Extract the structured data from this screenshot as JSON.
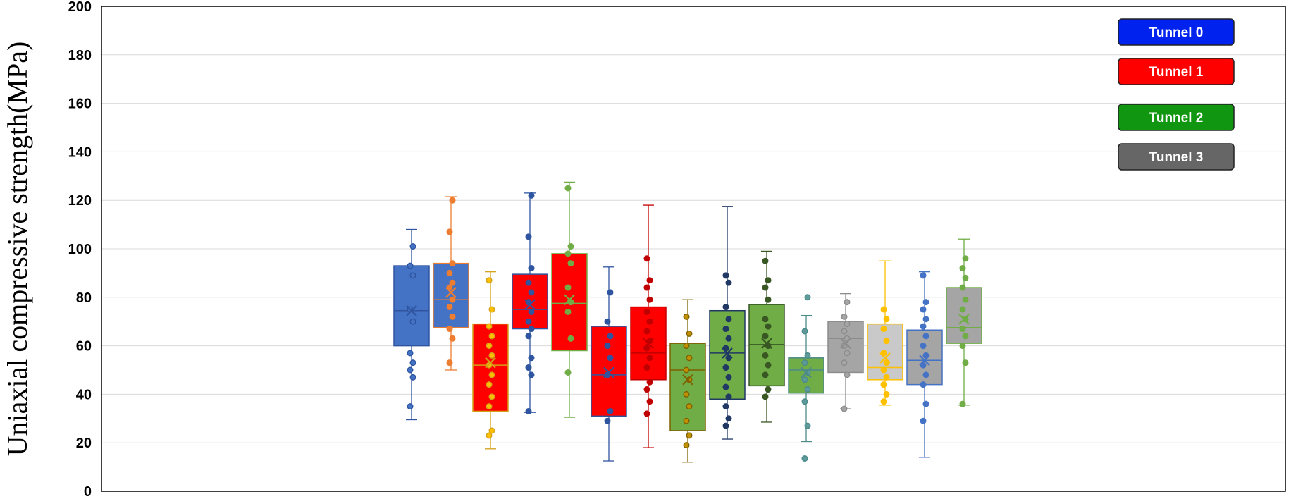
{
  "chart_data": {
    "type": "box",
    "title": "",
    "xlabel": "",
    "ylabel": "Uniaxial compressive strength(MPa)",
    "ylim": [
      0,
      200
    ],
    "yticks": [
      0,
      20,
      40,
      60,
      80,
      100,
      120,
      140,
      160,
      180,
      200
    ],
    "grid": "horizontal",
    "legend": {
      "position": "top-right",
      "entries": [
        {
          "label": "Tunnel 0",
          "color": "#0022ee"
        },
        {
          "label": "Tunnel 1",
          "color": "#ff0000"
        },
        {
          "label": "Tunnel 2",
          "color": "#109610"
        },
        {
          "label": "Tunnel 3",
          "color": "#666666"
        }
      ]
    },
    "boxes": [
      {
        "tunnel": 0,
        "fill": "#4472c4",
        "edge": "#2f55a0",
        "point": "#4472c4",
        "whisker": [
          29.5,
          108
        ],
        "q1": 60,
        "median": 74.5,
        "q3": 93,
        "mean": 74.5,
        "points": [
          35,
          47,
          50,
          53,
          57,
          70,
          75,
          89,
          93,
          101
        ]
      },
      {
        "tunnel": 0,
        "fill": "#4472c4",
        "edge": "#ed7d31",
        "point": "#ed7d31",
        "whisker": [
          50,
          121.5
        ],
        "q1": 67.5,
        "median": 79,
        "q3": 94,
        "mean": 82,
        "points": [
          53,
          63,
          67,
          72,
          76,
          79,
          84,
          86,
          90,
          94,
          107,
          120
        ]
      },
      {
        "tunnel": 1,
        "fill": "#ff0000",
        "edge": "#d4a017",
        "point": "#ffc000",
        "whisker": [
          17.5,
          90.5
        ],
        "q1": 33,
        "median": 52,
        "q3": 69,
        "mean": 53,
        "points": [
          23,
          25,
          35,
          39,
          44,
          48,
          52,
          56,
          60,
          64,
          68,
          75,
          87
        ]
      },
      {
        "tunnel": 1,
        "fill": "#ff0000",
        "edge": "#2f55a0",
        "point": "#2f55a0",
        "whisker": [
          32.5,
          123
        ],
        "q1": 67,
        "median": 75,
        "q3": 89.5,
        "mean": 77,
        "points": [
          33,
          48,
          51,
          55,
          64,
          67,
          70,
          74,
          78,
          82,
          86,
          92,
          105,
          122
        ]
      },
      {
        "tunnel": 1,
        "fill": "#ff0000",
        "edge": "#70ad47",
        "point": "#70ad47",
        "whisker": [
          30.5,
          127.5
        ],
        "q1": 58,
        "median": 77.5,
        "q3": 98,
        "mean": 79,
        "points": [
          49,
          63,
          74,
          78,
          84,
          94,
          98,
          101,
          125
        ]
      },
      {
        "tunnel": 1,
        "fill": "#ff0000",
        "edge": "#2f55a0",
        "point": "#2f55a0",
        "whisker": [
          12.5,
          92.5
        ],
        "q1": 31,
        "median": 48,
        "q3": 68,
        "mean": 49,
        "points": [
          29,
          33,
          48,
          55,
          60,
          64,
          70,
          82
        ]
      },
      {
        "tunnel": 1,
        "fill": "#ff0000",
        "edge": "#c00000",
        "point": "#c00000",
        "whisker": [
          18,
          118
        ],
        "q1": 46,
        "median": 57,
        "q3": 76,
        "mean": 61,
        "points": [
          32,
          37,
          42,
          45,
          51,
          55,
          59,
          62,
          66,
          70,
          74,
          79,
          84,
          87,
          96
        ]
      },
      {
        "tunnel": 2,
        "fill": "#70ad47",
        "edge": "#7f6000",
        "point": "#bf9000",
        "whisker": [
          12,
          79
        ],
        "q1": 25,
        "median": 50,
        "q3": 61,
        "mean": 46,
        "points": [
          19,
          23,
          29,
          35,
          40,
          46,
          50,
          55,
          60,
          65,
          72
        ]
      },
      {
        "tunnel": 2,
        "fill": "#70ad47",
        "edge": "#203864",
        "point": "#203864",
        "whisker": [
          21.5,
          117.5
        ],
        "q1": 38,
        "median": 57,
        "q3": 74.5,
        "mean": 57,
        "points": [
          27,
          30,
          35,
          39,
          43,
          47,
          51,
          55,
          59,
          63,
          67,
          71,
          76,
          86,
          89
        ]
      },
      {
        "tunnel": 2,
        "fill": "#70ad47",
        "edge": "#385723",
        "point": "#385723",
        "whisker": [
          28.5,
          99
        ],
        "q1": 43.5,
        "median": 60.5,
        "q3": 77,
        "mean": 61,
        "points": [
          39,
          42,
          48,
          52,
          56,
          60,
          64,
          68,
          71,
          79,
          84,
          87,
          95
        ]
      },
      {
        "tunnel": 2,
        "fill": "#70ad47",
        "edge": "#4d8a8a",
        "point": "#5e9a9a",
        "whisker": [
          20.5,
          72.5
        ],
        "q1": 40.5,
        "median": 50,
        "q3": 55,
        "mean": 49,
        "points": [
          13.5,
          27,
          37,
          42,
          46,
          49,
          53,
          56,
          66,
          80
        ]
      },
      {
        "tunnel": 3,
        "fill": "#a5a5a5",
        "edge": "#8c8c8c",
        "point": "#a5a5a5",
        "whisker": [
          34,
          81.5
        ],
        "q1": 49,
        "median": 63,
        "q3": 70,
        "mean": 61,
        "points": [
          34,
          48,
          53,
          57,
          60,
          63,
          66,
          69,
          72,
          78
        ]
      },
      {
        "tunnel": 3,
        "fill": "#c9c9c9",
        "edge": "#ffc000",
        "point": "#ffc000",
        "whisker": [
          35.5,
          95
        ],
        "q1": 46,
        "median": 51,
        "q3": 69,
        "mean": 55,
        "points": [
          37,
          40,
          44,
          47,
          50,
          53,
          57,
          62,
          67,
          71,
          75
        ]
      },
      {
        "tunnel": 3,
        "fill": "#a5a5a5",
        "edge": "#4472c4",
        "point": "#4472c4",
        "whisker": [
          14,
          90.5
        ],
        "q1": 44,
        "median": 54,
        "q3": 66.5,
        "mean": 54,
        "points": [
          29,
          36,
          44,
          48,
          52,
          56,
          60,
          64,
          68,
          71,
          75,
          78,
          89
        ]
      },
      {
        "tunnel": 3,
        "fill": "#a5a5a5",
        "edge": "#70ad47",
        "point": "#70ad47",
        "whisker": [
          35.5,
          104
        ],
        "q1": 61,
        "median": 67.5,
        "q3": 84,
        "mean": 71,
        "points": [
          36,
          53,
          60,
          64,
          67,
          71,
          75,
          79,
          84,
          88,
          92,
          96
        ]
      }
    ]
  }
}
